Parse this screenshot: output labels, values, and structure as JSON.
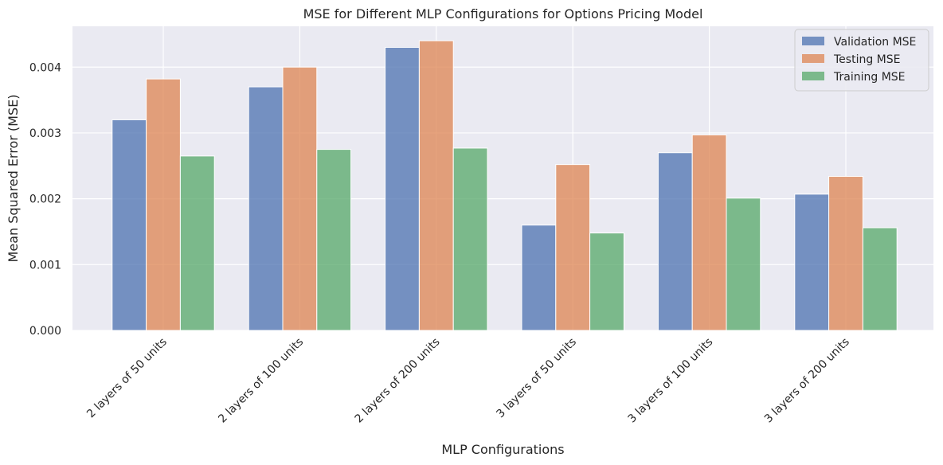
{
  "chart_data": {
    "type": "bar",
    "title": "MSE for Different MLP Configurations for Options Pricing Model",
    "xlabel": "MLP Configurations",
    "ylabel": "Mean Squared Error (MSE)",
    "categories": [
      "2 layers of 50 units",
      "2 layers of 100 units",
      "2 layers of 200 units",
      "3 layers of 50 units",
      "3 layers of 100 units",
      "3 layers of 200 units"
    ],
    "series": [
      {
        "name": "Validation MSE",
        "color": "#4c72b0",
        "values": [
          0.0032,
          0.0037,
          0.0043,
          0.0016,
          0.0027,
          0.00207
        ]
      },
      {
        "name": "Testing MSE",
        "color": "#dd8452",
        "values": [
          0.00382,
          0.004,
          0.0044,
          0.00252,
          0.00297,
          0.00234
        ]
      },
      {
        "name": "Training MSE",
        "color": "#55a868",
        "values": [
          0.00265,
          0.00275,
          0.00277,
          0.00148,
          0.00201,
          0.00156
        ]
      }
    ],
    "ylim": [
      0,
      0.00462
    ],
    "yticks": [
      "0.000",
      "0.001",
      "0.002",
      "0.003",
      "0.004"
    ],
    "ytick_values": [
      0,
      0.001,
      0.002,
      0.003,
      0.004
    ],
    "grid": true,
    "legend_position": "top-right",
    "background_color": "#eaeaf2",
    "grid_color": "#ffffff"
  }
}
